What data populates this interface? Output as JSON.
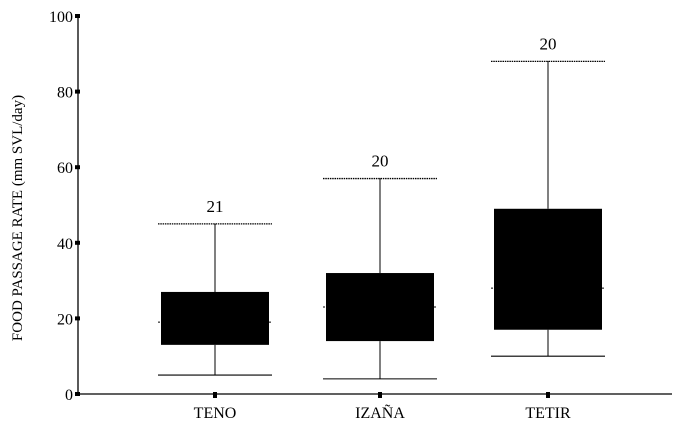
{
  "chart_data": {
    "type": "boxplot",
    "ylabel": "FOOD PASSAGE RATE (mm SVL/day)",
    "ylim": [
      0,
      100
    ],
    "yticks": [
      "0",
      "20",
      "40",
      "60",
      "80",
      "100"
    ],
    "categories": [
      "TENO",
      "IZAÑA",
      "TETIR"
    ],
    "boxes": [
      {
        "name": "TENO",
        "min": 5,
        "q1": 13,
        "median": 19,
        "q3": 27,
        "max": 45,
        "n": "21"
      },
      {
        "name": "IZAÑA",
        "min": 4,
        "q1": 14,
        "median": 23,
        "q3": 32,
        "max": 57,
        "n": "20"
      },
      {
        "name": "TETIR",
        "min": 10,
        "q1": 17,
        "median": 28,
        "q3": 49,
        "max": 88,
        "n": "20"
      }
    ],
    "grid": false,
    "box_color": "#000000"
  }
}
